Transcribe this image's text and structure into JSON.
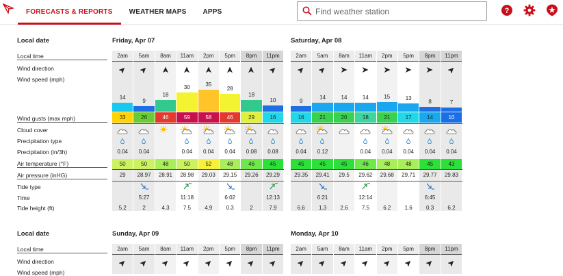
{
  "nav": {
    "tabs": [
      {
        "label": "FORECASTS & REPORTS",
        "active": true
      },
      {
        "label": "WEATHER MAPS"
      },
      {
        "label": "APPS"
      }
    ]
  },
  "search": {
    "placeholder": "Find weather station"
  },
  "row_labels": {
    "local_date": "Local date",
    "local_time": "Local time",
    "wind_direction": "Wind direction",
    "wind_speed": "Wind speed (mph)",
    "wind_gusts": "Wind gusts (max mph)",
    "cloud_cover": "Cloud cover",
    "precip_type": "Precipitation type",
    "precipitation": "Precipitation (in/3h)",
    "air_temp": "Air temperature (°F)",
    "air_pressure": "Air pressure (inHG)",
    "tide_type": "Tide type",
    "time": "Time",
    "tide_height": "Tide height (ft)"
  },
  "times": [
    "2am",
    "5am",
    "8am",
    "11am",
    "2pm",
    "5pm",
    "8pm",
    "11pm"
  ],
  "days": [
    {
      "date": "Friday, Apr 07",
      "wind_dir": [
        45,
        45,
        0,
        0,
        0,
        0,
        0,
        45
      ],
      "wind_speed": [
        14,
        9,
        18,
        30,
        35,
        28,
        18,
        10
      ],
      "gusts": [
        33,
        26,
        46,
        59,
        58,
        46,
        29,
        16
      ],
      "cloud": [
        "cloud",
        "cloud",
        "sun",
        "sun-cloud",
        "sun-cloud",
        "sun-cloud",
        "sun-cloud",
        "cloud"
      ],
      "precip_drop": [
        true,
        true,
        false,
        true,
        true,
        true,
        true,
        true
      ],
      "precip": [
        "0.04",
        "0.04",
        "",
        "0.04",
        "0.04",
        "0.04",
        "0.08",
        "0.08"
      ],
      "temp": [
        50,
        50,
        48,
        50,
        52,
        48,
        46,
        45
      ],
      "pressure": [
        "29",
        "28.97",
        "28.91",
        "28.98",
        "29.03",
        "29.15",
        "29.26",
        "29.29"
      ],
      "tide_type": [
        "",
        "low",
        "",
        "high",
        "",
        "low",
        "",
        "high"
      ],
      "tide_time": [
        "",
        "5:27",
        "",
        "11:18",
        "",
        "6:02",
        "",
        "12:13"
      ],
      "tide_height": [
        "5.2",
        "2",
        "4.3",
        "7.5",
        "4.9",
        "0.3",
        "2",
        "7.9"
      ]
    },
    {
      "date": "Saturday, Apr 08",
      "wind_dir": [
        45,
        45,
        90,
        90,
        90,
        90,
        90,
        45
      ],
      "wind_speed": [
        9,
        14,
        14,
        14,
        15,
        13,
        8,
        7
      ],
      "gusts": [
        16,
        21,
        20,
        18,
        21,
        17,
        14,
        10
      ],
      "cloud": [
        "cloud",
        "sun-cloud",
        "cloud",
        "cloud",
        "sun-cloud",
        "cloud",
        "cloud",
        "cloud"
      ],
      "precip_drop": [
        true,
        true,
        false,
        true,
        true,
        true,
        true,
        true
      ],
      "precip": [
        "0.04",
        "0.12",
        "",
        "0.04",
        "0.04",
        "0.04",
        "0.04",
        "0.04"
      ],
      "temp": [
        45,
        45,
        45,
        46,
        48,
        48,
        45,
        43
      ],
      "pressure": [
        "29.35",
        "29.41",
        "29.5",
        "29.62",
        "29.68",
        "29.71",
        "29.77",
        "29.83"
      ],
      "tide_type": [
        "",
        "low",
        "",
        "high",
        "",
        "",
        "low",
        ""
      ],
      "tide_time": [
        "",
        "6:21",
        "",
        "12:14",
        "",
        "",
        "6:45",
        ""
      ],
      "tide_height": [
        "6.6",
        "1.3",
        "2.6",
        "7.5",
        "6.2",
        "1.6",
        "0.3",
        "6.2"
      ]
    },
    {
      "date": "Sunday, Apr 09",
      "wind_dir": [
        45,
        45,
        45,
        45,
        45,
        45,
        45,
        45
      ]
    },
    {
      "date": "Monday, Apr 10",
      "wind_dir": [
        45,
        45,
        45,
        45,
        45,
        45,
        45,
        45
      ]
    }
  ],
  "colors": {
    "accent": "#c8101b"
  }
}
